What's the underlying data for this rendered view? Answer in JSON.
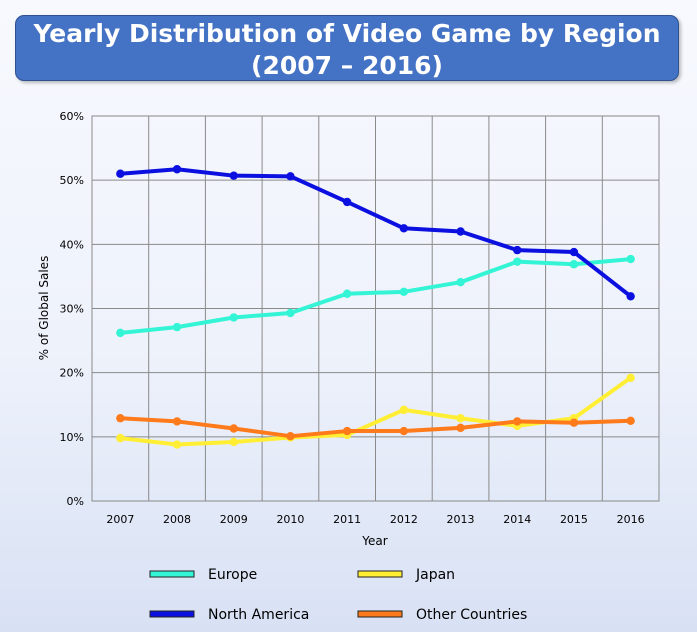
{
  "chart_data": {
    "type": "line",
    "title": "Yearly Distribution of Video Game by Region",
    "subtitle": "(2007 – 2016)",
    "xlabel": "Year",
    "ylabel": "% of Global Sales",
    "categories": [
      "2007",
      "2008",
      "2009",
      "2010",
      "2011",
      "2012",
      "2013",
      "2014",
      "2015",
      "2016"
    ],
    "ylim": [
      0,
      60
    ],
    "yticks": [
      "0%",
      "10%",
      "20%",
      "30%",
      "40%",
      "50%",
      "60%"
    ],
    "grid": true,
    "legend_position": "bottom",
    "series": [
      {
        "name": "Europe",
        "color": "#33f5d6",
        "values": [
          26.2,
          27.1,
          28.6,
          29.3,
          32.3,
          32.6,
          34.1,
          37.3,
          36.9,
          37.7
        ]
      },
      {
        "name": "Japan",
        "color": "#ffee33",
        "values": [
          9.8,
          8.8,
          9.2,
          9.9,
          10.3,
          14.2,
          12.9,
          11.7,
          12.9,
          19.2
        ]
      },
      {
        "name": "North America",
        "color": "#0b10e0",
        "values": [
          51.0,
          51.7,
          50.7,
          50.6,
          46.6,
          42.5,
          42.0,
          39.1,
          38.8,
          31.9
        ]
      },
      {
        "name": "Other Countries",
        "color": "#ff7a1a",
        "values": [
          12.9,
          12.4,
          11.3,
          10.1,
          10.9,
          10.9,
          11.4,
          12.4,
          12.2,
          12.5
        ]
      }
    ],
    "legend_order": [
      "Europe",
      "Japan",
      "North America",
      "Other Countries"
    ]
  }
}
